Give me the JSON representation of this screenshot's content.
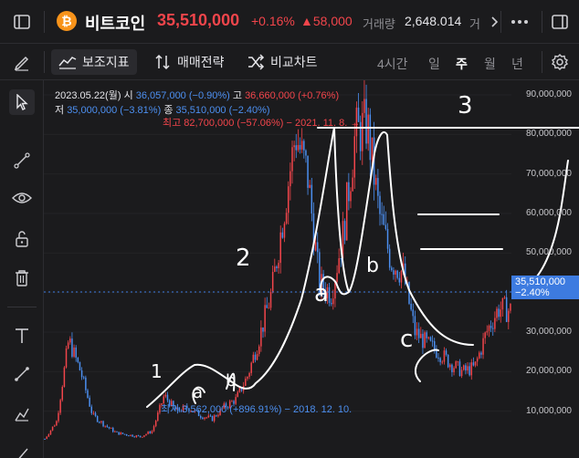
{
  "header": {
    "coin_symbol": "₿",
    "coin_name": "비트코인",
    "price": "35,510,000",
    "change_pct": "+0.16%",
    "change_abs": "▲58,000",
    "volume_label": "거래량",
    "volume_value": "2,648.014",
    "volume_cut_label": "거"
  },
  "toolbar": {
    "indicators_label": "보조지표",
    "strategy_label": "매매전략",
    "compare_label": "비교차트",
    "periods": [
      "4시간",
      "일",
      "주",
      "월",
      "년"
    ],
    "selected_period": "주"
  },
  "info": {
    "date": "2023.05.22(월)",
    "open_label": "시",
    "open_value": "36,057,000 (−0.90%)",
    "high_label": "고",
    "high_value": "36,660,000 (+0.76%)",
    "low_label": "저",
    "low_value": "35,000,000 (−3.81%)",
    "close_label": "종",
    "close_value": "35,510,000 (−2.40%)"
  },
  "markers": {
    "high": "최고 82,700,000 (−57.06%) − 2021. 11. 8. →",
    "low": "최저 3,562,000 (+896.91%) − 2018. 12. 10."
  },
  "price_tag": {
    "price": "35,510,000",
    "pct": "−2.40%"
  },
  "y_axis": [
    "90,000,000",
    "80,000,000",
    "70,000,000",
    "60,000,000",
    "50,000,000",
    "40,000,000",
    "30,000,000",
    "20,000,000",
    "10,000,000"
  ],
  "annotations": {
    "n1": "1",
    "n2": "2",
    "n3": "3",
    "a": "a",
    "b": "b",
    "c": "c",
    "a2": "a",
    "b2": "b"
  },
  "colors": {
    "up": "#f2454b",
    "down": "#4c8ff0",
    "accent": "#3d7be0",
    "background": "#1b1b1d"
  },
  "chart_data": {
    "type": "candlestick",
    "ylim": [
      0,
      90000000
    ],
    "last_close": 35510000,
    "all_time_high": 82700000,
    "all_time_low": 3562000,
    "approx_close_series": [
      3000000,
      7500000,
      28000000,
      20000000,
      9000000,
      6500000,
      4500000,
      4000000,
      3562000,
      5000000,
      14000000,
      10000000,
      11000000,
      9000000,
      8000000,
      11000000,
      13000000,
      19000000,
      29000000,
      40000000,
      60000000,
      80000000,
      70000000,
      42000000,
      40000000,
      55000000,
      80000000,
      82700000,
      60000000,
      48000000,
      45000000,
      30000000,
      27000000,
      25000000,
      22000000,
      20000000,
      21000000,
      30000000,
      36000000,
      35510000
    ]
  }
}
